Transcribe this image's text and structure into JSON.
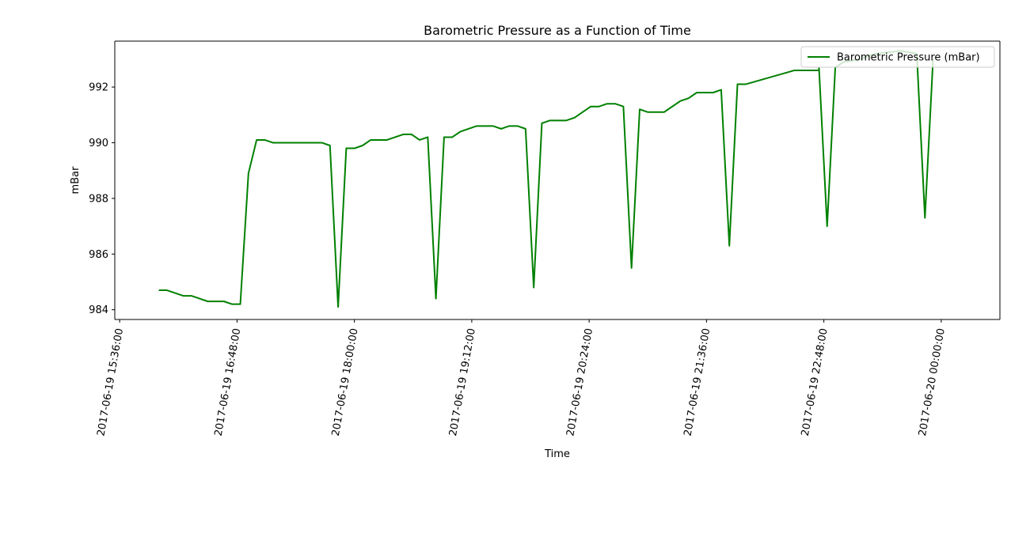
{
  "chart_data": {
    "type": "line",
    "title": "Barometric Pressure as a Function of Time",
    "xlabel": "Time",
    "ylabel": "mBar",
    "xlim": [
      "2017-06-19 15:33:00",
      "2017-06-20 00:36:00"
    ],
    "ylim": [
      983.65,
      993.65
    ],
    "xticks": [
      "2017-06-19 15:36:00",
      "2017-06-19 16:48:00",
      "2017-06-19 18:00:00",
      "2017-06-19 19:12:00",
      "2017-06-19 20:24:00",
      "2017-06-19 21:36:00",
      "2017-06-19 22:48:00",
      "2017-06-20 00:00:00"
    ],
    "yticks": [
      984,
      986,
      988,
      990,
      992
    ],
    "yticklabels": [
      "984",
      "986",
      "988",
      "990",
      "992"
    ],
    "grid": false,
    "legend_position": "upper right",
    "series": [
      {
        "name": "Barometric Pressure (mBar)",
        "color": "#008000",
        "points": [
          [
            "2017-06-19 16:00:00",
            984.7
          ],
          [
            "2017-06-19 16:05:00",
            984.7
          ],
          [
            "2017-06-19 16:15:00",
            984.5
          ],
          [
            "2017-06-19 16:20:00",
            984.5
          ],
          [
            "2017-06-19 16:30:00",
            984.3
          ],
          [
            "2017-06-19 16:40:00",
            984.3
          ],
          [
            "2017-06-19 16:45:00",
            984.2
          ],
          [
            "2017-06-19 16:50:00",
            984.2
          ],
          [
            "2017-06-19 16:55:00",
            988.9
          ],
          [
            "2017-06-19 17:00:00",
            990.1
          ],
          [
            "2017-06-19 17:05:00",
            990.1
          ],
          [
            "2017-06-19 17:10:00",
            990.0
          ],
          [
            "2017-06-19 17:20:00",
            990.0
          ],
          [
            "2017-06-19 17:40:00",
            990.0
          ],
          [
            "2017-06-19 17:45:00",
            989.9
          ],
          [
            "2017-06-19 17:50:00",
            984.1
          ],
          [
            "2017-06-19 17:55:00",
            989.8
          ],
          [
            "2017-06-19 18:00:00",
            989.8
          ],
          [
            "2017-06-19 18:05:00",
            989.9
          ],
          [
            "2017-06-19 18:10:00",
            990.1
          ],
          [
            "2017-06-19 18:20:00",
            990.1
          ],
          [
            "2017-06-19 18:30:00",
            990.3
          ],
          [
            "2017-06-19 18:35:00",
            990.3
          ],
          [
            "2017-06-19 18:40:00",
            990.1
          ],
          [
            "2017-06-19 18:45:00",
            990.2
          ],
          [
            "2017-06-19 18:50:00",
            984.4
          ],
          [
            "2017-06-19 18:55:00",
            990.2
          ],
          [
            "2017-06-19 19:00:00",
            990.2
          ],
          [
            "2017-06-19 19:05:00",
            990.4
          ],
          [
            "2017-06-19 19:15:00",
            990.6
          ],
          [
            "2017-06-19 19:25:00",
            990.6
          ],
          [
            "2017-06-19 19:30:00",
            990.5
          ],
          [
            "2017-06-19 19:35:00",
            990.6
          ],
          [
            "2017-06-19 19:40:00",
            990.6
          ],
          [
            "2017-06-19 19:45:00",
            990.5
          ],
          [
            "2017-06-19 19:50:00",
            984.8
          ],
          [
            "2017-06-19 19:55:00",
            990.7
          ],
          [
            "2017-06-19 20:00:00",
            990.8
          ],
          [
            "2017-06-19 20:10:00",
            990.8
          ],
          [
            "2017-06-19 20:15:00",
            990.9
          ],
          [
            "2017-06-19 20:25:00",
            991.3
          ],
          [
            "2017-06-19 20:30:00",
            991.3
          ],
          [
            "2017-06-19 20:35:00",
            991.4
          ],
          [
            "2017-06-19 20:40:00",
            991.4
          ],
          [
            "2017-06-19 20:45:00",
            991.3
          ],
          [
            "2017-06-19 20:50:00",
            985.5
          ],
          [
            "2017-06-19 20:55:00",
            991.2
          ],
          [
            "2017-06-19 21:00:00",
            991.1
          ],
          [
            "2017-06-19 21:10:00",
            991.1
          ],
          [
            "2017-06-19 21:20:00",
            991.5
          ],
          [
            "2017-06-19 21:25:00",
            991.6
          ],
          [
            "2017-06-19 21:30:00",
            991.8
          ],
          [
            "2017-06-19 21:40:00",
            991.8
          ],
          [
            "2017-06-19 21:45:00",
            991.9
          ],
          [
            "2017-06-19 21:50:00",
            986.3
          ],
          [
            "2017-06-19 21:55:00",
            992.1
          ],
          [
            "2017-06-19 22:00:00",
            992.1
          ],
          [
            "2017-06-19 22:30:00",
            992.6
          ],
          [
            "2017-06-19 22:45:00",
            992.6
          ],
          [
            "2017-06-19 22:45:00",
            992.7
          ],
          [
            "2017-06-19 22:50:00",
            987.0
          ],
          [
            "2017-06-19 22:55:00",
            992.7
          ],
          [
            "2017-06-19 23:00:00",
            992.9
          ],
          [
            "2017-06-19 23:10:00",
            993.0
          ],
          [
            "2017-06-19 23:20:00",
            993.2
          ],
          [
            "2017-06-19 23:35:00",
            993.3
          ],
          [
            "2017-06-19 23:45:00",
            993.2
          ],
          [
            "2017-06-19 23:50:00",
            987.3
          ],
          [
            "2017-06-19 23:55:00",
            993.0
          ]
        ]
      }
    ]
  }
}
